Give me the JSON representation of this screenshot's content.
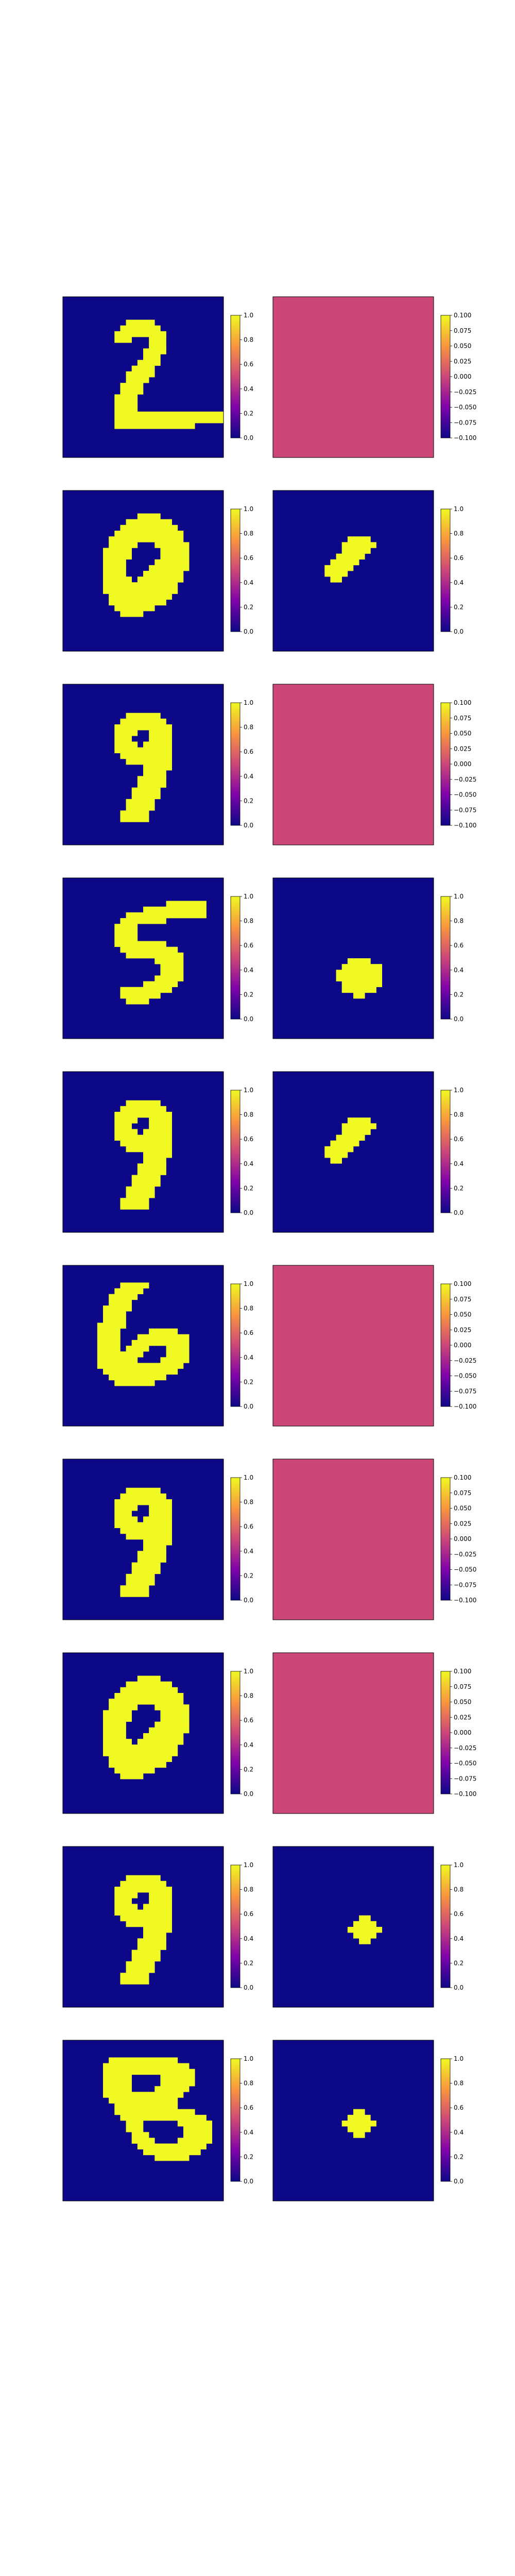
{
  "figure": {
    "colormap": "plasma",
    "colors": {
      "low": "#0d0887",
      "mid": "#cc4778",
      "high": "#f0f921"
    }
  },
  "chart_data": [
    {
      "type": "heatmap",
      "row": 1,
      "panel": "input",
      "grid": [
        28,
        28
      ],
      "shape": "digit-2",
      "vmin": 0.0,
      "vmax": 1.0,
      "colorbar_ticks": [
        "0.0",
        "0.2",
        "0.4",
        "0.6",
        "0.8",
        "1.0"
      ]
    },
    {
      "type": "heatmap",
      "row": 1,
      "panel": "output",
      "grid": [
        28,
        28
      ],
      "shape": "blank",
      "vmin": -0.1,
      "vmax": 0.1,
      "colorbar_ticks": [
        "−0.100",
        "−0.075",
        "−0.050",
        "−0.025",
        "0.000",
        "0.025",
        "0.050",
        "0.075",
        "0.100"
      ]
    },
    {
      "type": "heatmap",
      "row": 2,
      "panel": "input",
      "grid": [
        28,
        28
      ],
      "shape": "digit-0",
      "vmin": 0.0,
      "vmax": 1.0,
      "colorbar_ticks": [
        "0.0",
        "0.2",
        "0.4",
        "0.6",
        "0.8",
        "1.0"
      ]
    },
    {
      "type": "heatmap",
      "row": 2,
      "panel": "output",
      "grid": [
        28,
        28
      ],
      "shape": "tilted-blob",
      "vmin": 0.0,
      "vmax": 1.0,
      "colorbar_ticks": [
        "0.0",
        "0.2",
        "0.4",
        "0.6",
        "0.8",
        "1.0"
      ]
    },
    {
      "type": "heatmap",
      "row": 3,
      "panel": "input",
      "grid": [
        28,
        28
      ],
      "shape": "digit-9",
      "vmin": 0.0,
      "vmax": 1.0,
      "colorbar_ticks": [
        "0.0",
        "0.2",
        "0.4",
        "0.6",
        "0.8",
        "1.0"
      ]
    },
    {
      "type": "heatmap",
      "row": 3,
      "panel": "output",
      "grid": [
        28,
        28
      ],
      "shape": "blank",
      "vmin": -0.1,
      "vmax": 0.1,
      "colorbar_ticks": [
        "−0.100",
        "−0.075",
        "−0.050",
        "−0.025",
        "0.000",
        "0.025",
        "0.050",
        "0.075",
        "0.100"
      ]
    },
    {
      "type": "heatmap",
      "row": 4,
      "panel": "input",
      "grid": [
        28,
        28
      ],
      "shape": "digit-5",
      "vmin": 0.0,
      "vmax": 1.0,
      "colorbar_ticks": [
        "0.0",
        "0.2",
        "0.4",
        "0.6",
        "0.8",
        "1.0"
      ]
    },
    {
      "type": "heatmap",
      "row": 4,
      "panel": "output",
      "grid": [
        28,
        28
      ],
      "shape": "round-blob",
      "vmin": 0.0,
      "vmax": 1.0,
      "colorbar_ticks": [
        "0.0",
        "0.2",
        "0.4",
        "0.6",
        "0.8",
        "1.0"
      ]
    },
    {
      "type": "heatmap",
      "row": 5,
      "panel": "input",
      "grid": [
        28,
        28
      ],
      "shape": "digit-9",
      "vmin": 0.0,
      "vmax": 1.0,
      "colorbar_ticks": [
        "0.0",
        "0.2",
        "0.4",
        "0.6",
        "0.8",
        "1.0"
      ]
    },
    {
      "type": "heatmap",
      "row": 5,
      "panel": "output",
      "grid": [
        28,
        28
      ],
      "shape": "tilted-blob",
      "vmin": 0.0,
      "vmax": 1.0,
      "colorbar_ticks": [
        "0.0",
        "0.2",
        "0.4",
        "0.6",
        "0.8",
        "1.0"
      ]
    },
    {
      "type": "heatmap",
      "row": 6,
      "panel": "input",
      "grid": [
        28,
        28
      ],
      "shape": "digit-6",
      "vmin": 0.0,
      "vmax": 1.0,
      "colorbar_ticks": [
        "0.0",
        "0.2",
        "0.4",
        "0.6",
        "0.8",
        "1.0"
      ]
    },
    {
      "type": "heatmap",
      "row": 6,
      "panel": "output",
      "grid": [
        28,
        28
      ],
      "shape": "blank",
      "vmin": -0.1,
      "vmax": 0.1,
      "colorbar_ticks": [
        "−0.100",
        "−0.075",
        "−0.050",
        "−0.025",
        "0.000",
        "0.025",
        "0.050",
        "0.075",
        "0.100"
      ]
    },
    {
      "type": "heatmap",
      "row": 7,
      "panel": "input",
      "grid": [
        28,
        28
      ],
      "shape": "digit-9",
      "vmin": 0.0,
      "vmax": 1.0,
      "colorbar_ticks": [
        "0.0",
        "0.2",
        "0.4",
        "0.6",
        "0.8",
        "1.0"
      ]
    },
    {
      "type": "heatmap",
      "row": 7,
      "panel": "output",
      "grid": [
        28,
        28
      ],
      "shape": "blank",
      "vmin": -0.1,
      "vmax": 0.1,
      "colorbar_ticks": [
        "−0.100",
        "−0.075",
        "−0.050",
        "−0.025",
        "0.000",
        "0.025",
        "0.050",
        "0.075",
        "0.100"
      ]
    },
    {
      "type": "heatmap",
      "row": 8,
      "panel": "input",
      "grid": [
        28,
        28
      ],
      "shape": "digit-0",
      "vmin": 0.0,
      "vmax": 1.0,
      "colorbar_ticks": [
        "0.0",
        "0.2",
        "0.4",
        "0.6",
        "0.8",
        "1.0"
      ]
    },
    {
      "type": "heatmap",
      "row": 8,
      "panel": "output",
      "grid": [
        28,
        28
      ],
      "shape": "blank",
      "vmin": -0.1,
      "vmax": 0.1,
      "colorbar_ticks": [
        "−0.100",
        "−0.075",
        "−0.050",
        "−0.025",
        "0.000",
        "0.025",
        "0.050",
        "0.075",
        "0.100"
      ]
    },
    {
      "type": "heatmap",
      "row": 9,
      "panel": "input",
      "grid": [
        28,
        28
      ],
      "shape": "digit-9",
      "vmin": 0.0,
      "vmax": 1.0,
      "colorbar_ticks": [
        "0.0",
        "0.2",
        "0.4",
        "0.6",
        "0.8",
        "1.0"
      ]
    },
    {
      "type": "heatmap",
      "row": 9,
      "panel": "output",
      "grid": [
        28,
        28
      ],
      "shape": "diamond",
      "vmin": 0.0,
      "vmax": 1.0,
      "colorbar_ticks": [
        "0.0",
        "0.2",
        "0.4",
        "0.6",
        "0.8",
        "1.0"
      ]
    },
    {
      "type": "heatmap",
      "row": 10,
      "panel": "input",
      "grid": [
        28,
        28
      ],
      "shape": "digit-8",
      "vmin": 0.0,
      "vmax": 1.0,
      "colorbar_ticks": [
        "0.0",
        "0.2",
        "0.4",
        "0.6",
        "0.8",
        "1.0"
      ]
    },
    {
      "type": "heatmap",
      "row": 10,
      "panel": "output",
      "grid": [
        28,
        28
      ],
      "shape": "diamond",
      "vmin": 0.0,
      "vmax": 1.0,
      "colorbar_ticks": [
        "0.0",
        "0.2",
        "0.4",
        "0.6",
        "0.8",
        "1.0"
      ]
    }
  ]
}
